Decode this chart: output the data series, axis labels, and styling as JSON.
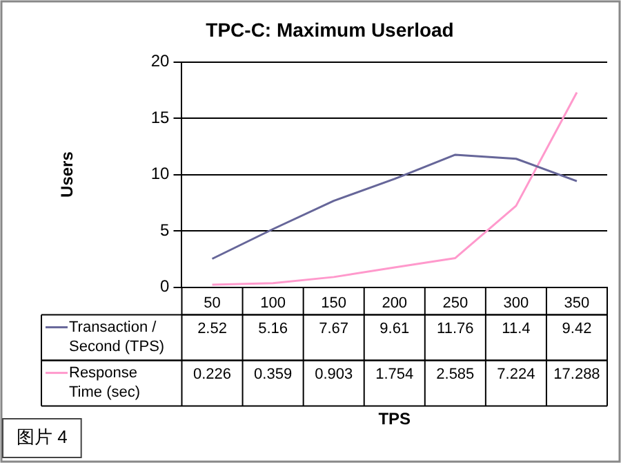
{
  "chart_data": {
    "type": "line",
    "title": "TPC-C: Maximum Userload",
    "ylabel": "Users",
    "categories": [
      "50",
      "100",
      "150",
      "200",
      "250",
      "300",
      "350"
    ],
    "series": [
      {
        "name": "Transaction / Second (TPS)",
        "color": "#666699",
        "values": [
          2.52,
          5.16,
          7.67,
          9.61,
          11.76,
          11.4,
          9.42
        ]
      },
      {
        "name": "Response Time (sec)",
        "color": "#ff99cc",
        "values": [
          0.226,
          0.359,
          0.903,
          1.754,
          2.585,
          7.224,
          17.288
        ]
      }
    ],
    "ylim": [
      0,
      20
    ],
    "yticks": [
      0,
      5,
      10,
      15,
      20
    ],
    "grid": "y",
    "legend": "bottom",
    "marker": "none",
    "line_style": "solid",
    "data_labels": true,
    "annotations": [
      "TPS",
      "图片 4"
    ]
  }
}
